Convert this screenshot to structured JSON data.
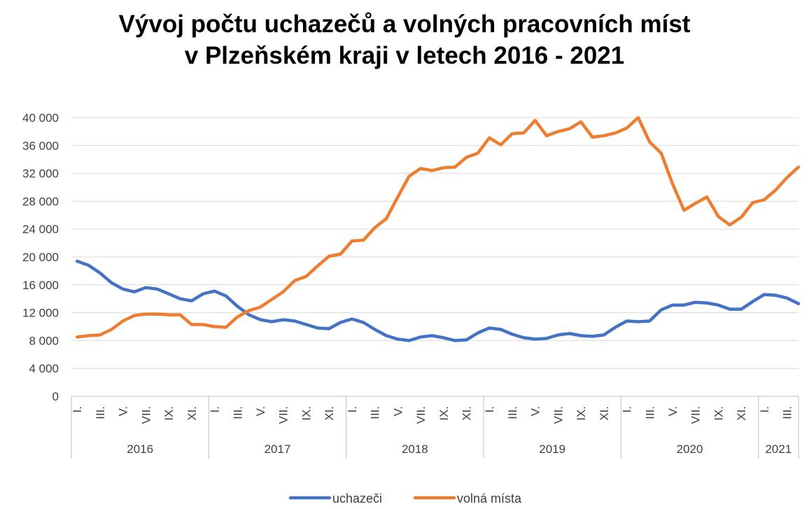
{
  "chart_data": {
    "type": "line",
    "title_lines": [
      "Vývoj počtu uchazečů a volných pracovních míst",
      "v Plzeňském kraji v letech 2016 - 2021"
    ],
    "xlabel": "",
    "ylabel": "",
    "ylim": [
      0,
      40000
    ],
    "y_ticks": [
      0,
      4000,
      8000,
      12000,
      16000,
      20000,
      24000,
      28000,
      32000,
      36000,
      40000
    ],
    "y_tick_labels": [
      "0",
      "4 000",
      "8 000",
      "12 000",
      "16 000",
      "20 000",
      "24 000",
      "28 000",
      "32 000",
      "36 000",
      "40 000"
    ],
    "grid": "horizontal",
    "legend_position": "bottom",
    "month_tick_labels": [
      "I.",
      "III.",
      "V.",
      "VII.",
      "IX.",
      "XI."
    ],
    "years": [
      {
        "label": "2016",
        "months": 12
      },
      {
        "label": "2017",
        "months": 12
      },
      {
        "label": "2018",
        "months": 12
      },
      {
        "label": "2019",
        "months": 12
      },
      {
        "label": "2020",
        "months": 12
      },
      {
        "label": "2021",
        "months": 4
      }
    ],
    "series": [
      {
        "name": "uchazeči",
        "color": "#4472C4",
        "values": [
          19400,
          18800,
          17700,
          16300,
          15400,
          15000,
          15600,
          15400,
          14700,
          14000,
          13700,
          14700,
          15100,
          14400,
          12900,
          11700,
          11000,
          10700,
          11000,
          10800,
          10300,
          9800,
          9700,
          10600,
          11100,
          10600,
          9600,
          8700,
          8200,
          8000,
          8500,
          8700,
          8400,
          8000,
          8100,
          9100,
          9800,
          9600,
          8900,
          8400,
          8200,
          8300,
          8800,
          9000,
          8700,
          8600,
          8800,
          9900,
          10800,
          10700,
          10800,
          12400,
          13100,
          13100,
          13500,
          13400,
          13100,
          12500,
          12500,
          13600,
          14600,
          14500,
          14100,
          13300
        ]
      },
      {
        "name": "volná místa",
        "color": "#ED7D31",
        "values": [
          8500,
          8700,
          8800,
          9600,
          10800,
          11600,
          11800,
          11800,
          11700,
          11700,
          10300,
          10300,
          10000,
          9900,
          11400,
          12300,
          12800,
          13900,
          15000,
          16600,
          17200,
          18700,
          20100,
          20400,
          22300,
          22400,
          24200,
          25500,
          28600,
          31600,
          32700,
          32400,
          32800,
          32900,
          34300,
          34900,
          37100,
          36100,
          37700,
          37800,
          39600,
          37400,
          38000,
          38400,
          39400,
          37200,
          37400,
          37800,
          38500,
          40000,
          36500,
          34900,
          30500,
          26700,
          27700,
          28600,
          25800,
          24600,
          25700,
          27800,
          28200,
          29600,
          31400,
          32900
        ]
      }
    ]
  }
}
